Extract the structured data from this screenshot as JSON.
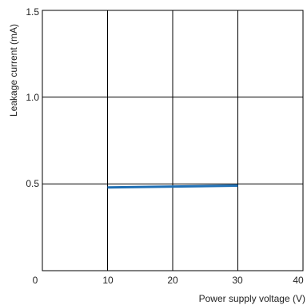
{
  "chart_data": {
    "type": "line",
    "title": "",
    "xlabel": "Power supply voltage (V)",
    "ylabel": "Leakage current (mA)",
    "xlim": [
      0,
      40
    ],
    "ylim": [
      0,
      1.5
    ],
    "x_ticks": [
      "0",
      "10",
      "20",
      "30",
      "40"
    ],
    "y_ticks": [
      "0.5",
      "1.0",
      "1.5"
    ],
    "grid": true,
    "series": [
      {
        "x": [
          10,
          30
        ],
        "y": [
          0.48,
          0.49
        ],
        "color": "#1f6fb4"
      }
    ]
  }
}
